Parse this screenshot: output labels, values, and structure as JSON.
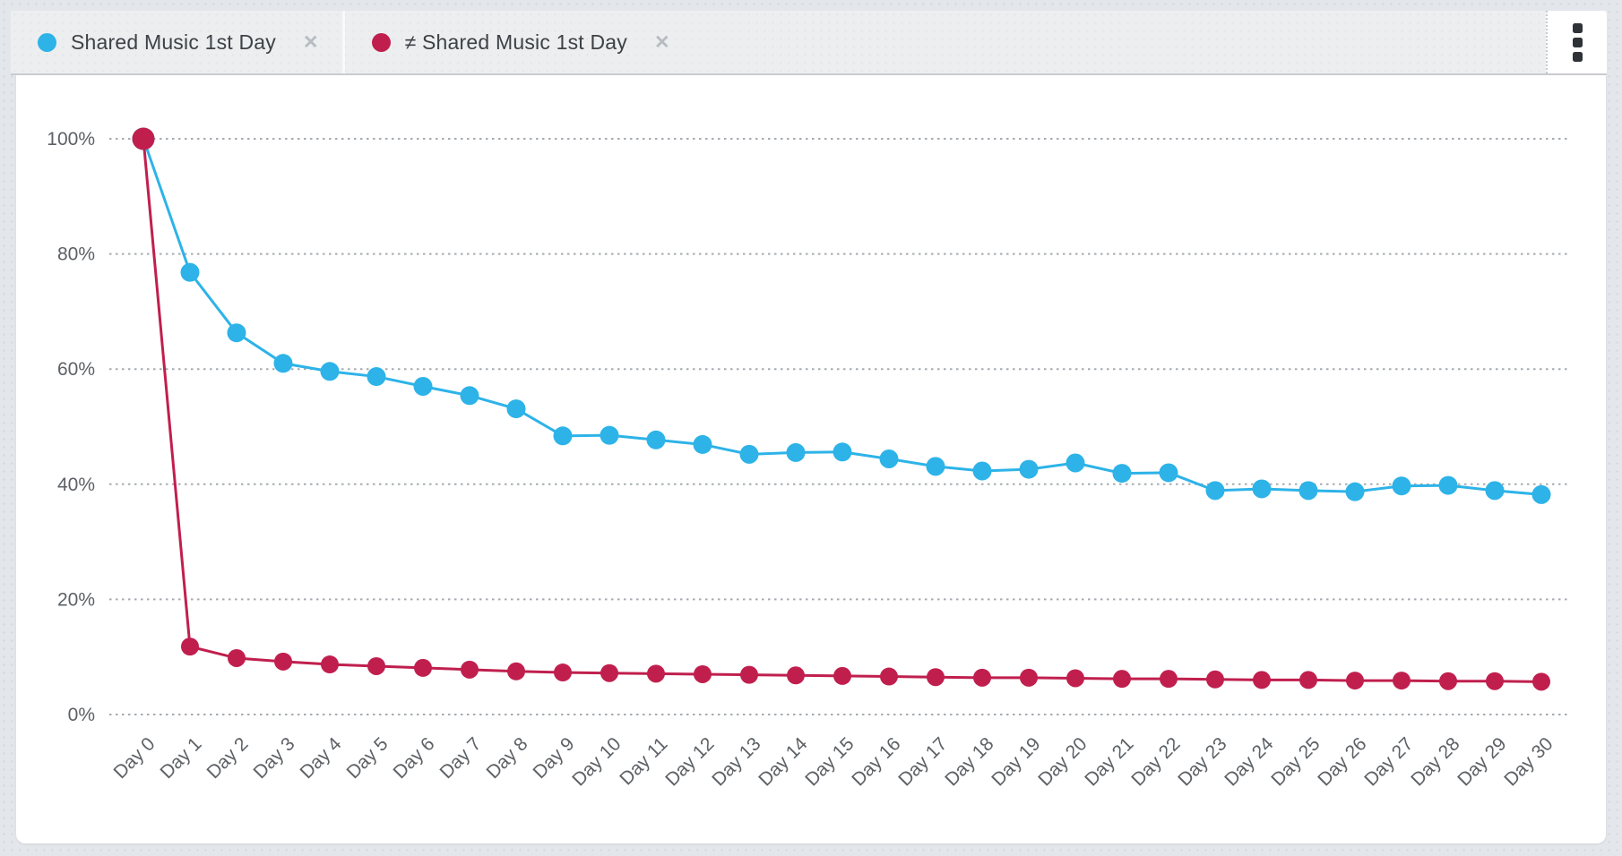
{
  "tabs": [
    {
      "label": "Shared Music 1st Day",
      "color": "#2db3e8",
      "close_icon": "✕"
    },
    {
      "label": "≠ Shared Music 1st Day",
      "color": "#c01f4e",
      "close_icon": "✕"
    }
  ],
  "chart_data": {
    "type": "line",
    "title": "",
    "xlabel": "",
    "ylabel": "",
    "categories": [
      "Day 0",
      "Day 1",
      "Day 2",
      "Day 3",
      "Day 4",
      "Day 5",
      "Day 6",
      "Day 7",
      "Day 8",
      "Day 9",
      "Day 10",
      "Day 11",
      "Day 12",
      "Day 13",
      "Day 14",
      "Day 15",
      "Day 16",
      "Day 17",
      "Day 18",
      "Day 19",
      "Day 20",
      "Day 21",
      "Day 22",
      "Day 23",
      "Day 24",
      "Day 25",
      "Day 26",
      "Day 27",
      "Day 28",
      "Day 29",
      "Day 30"
    ],
    "series": [
      {
        "name": "Shared Music 1st Day",
        "color": "#2db3e8",
        "values": [
          100,
          76.8,
          66.3,
          61.0,
          59.6,
          58.7,
          57.0,
          55.4,
          53.1,
          48.4,
          48.5,
          47.7,
          46.9,
          45.2,
          45.5,
          45.6,
          44.4,
          43.1,
          42.3,
          42.6,
          43.7,
          41.9,
          42.0,
          38.9,
          39.2,
          38.9,
          38.7,
          39.7,
          39.8,
          38.9,
          38.2
        ]
      },
      {
        "name": "≠ Shared Music 1st Day",
        "color": "#c01f4e",
        "values": [
          100,
          11.8,
          9.8,
          9.2,
          8.7,
          8.4,
          8.1,
          7.8,
          7.5,
          7.3,
          7.2,
          7.1,
          7.0,
          6.9,
          6.8,
          6.7,
          6.6,
          6.5,
          6.4,
          6.4,
          6.3,
          6.2,
          6.2,
          6.1,
          6.0,
          6.0,
          5.9,
          5.9,
          5.8,
          5.8,
          5.7
        ]
      }
    ],
    "y_ticks": [
      "100%",
      "80%",
      "60%",
      "40%",
      "20%",
      "0%"
    ],
    "ylim": [
      0,
      100
    ],
    "grid": "horizontal-dotted",
    "legend_position": "top-tabs"
  }
}
